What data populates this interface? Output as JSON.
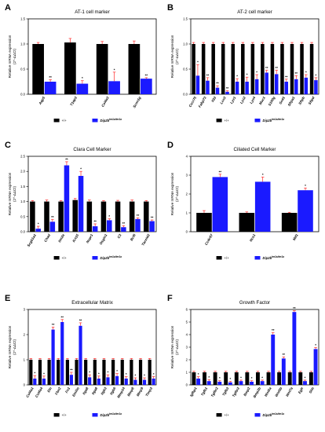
{
  "colors": {
    "control": "#000000",
    "mutant": "#1a1aff",
    "error": "#ff2b2b"
  },
  "legend": {
    "control_label": "+/+",
    "mutant_label": "Dip2b",
    "mutant_sup": "tm1a/tm1a"
  },
  "chart_data": [
    {
      "panel": "A",
      "title": "AT-1 cell marker",
      "type": "bar",
      "ylabel": "Relative mRNA expression",
      "ysub": "(2^-ΔΔCt)",
      "ylim": [
        0,
        1.5
      ],
      "yticks": [
        0.0,
        0.5,
        1.0,
        1.5
      ],
      "tick_labels": [
        "0.0",
        "0.5",
        "1.0",
        "1.5"
      ],
      "categories": [
        "Aqp5",
        "T1αp3",
        "Col4a3",
        "Scnn1g"
      ],
      "series": [
        {
          "name": "+/+",
          "values": [
            1.0,
            1.03,
            1.0,
            1.0
          ],
          "errors": [
            0.03,
            0.08,
            0.05,
            0.06
          ]
        },
        {
          "name": "Dip2b",
          "values": [
            0.25,
            0.21,
            0.26,
            0.31
          ],
          "errors": [
            0.04,
            0.06,
            0.18,
            0.02
          ]
        }
      ],
      "sig": [
        "**",
        "*",
        "*",
        "**"
      ]
    },
    {
      "panel": "B",
      "title": "AT-2 cell marker",
      "type": "bar",
      "ylabel": "Relative mRNA expression",
      "ysub": "(2^-ΔΔCt)",
      "ylim": [
        0,
        1.5
      ],
      "yticks": [
        0.0,
        0.5,
        1.0,
        1.5
      ],
      "tick_labels": [
        "0.0",
        "0.5",
        "1.0",
        "1.5"
      ],
      "categories": [
        "Cxcr75",
        "Fabp73",
        "Il33",
        "Lcn3",
        "Lyz1",
        "Lyz2",
        "Lyz4",
        "Muc1",
        "S100g",
        "Scd1",
        "Sftpa1",
        "Sftpb",
        "Sftpd"
      ],
      "series": [
        {
          "name": "+/+",
          "values": [
            1.0,
            1.0,
            1.0,
            1.0,
            1.0,
            1.0,
            1.0,
            1.0,
            1.0,
            1.0,
            1.0,
            1.0,
            1.0
          ],
          "errors": [
            0.03,
            0.03,
            0.03,
            0.03,
            0.03,
            0.03,
            0.03,
            0.03,
            0.03,
            0.03,
            0.03,
            0.03,
            0.03
          ]
        },
        {
          "name": "Dip2b",
          "values": [
            0.37,
            0.27,
            0.13,
            0.05,
            0.25,
            0.25,
            0.3,
            0.43,
            0.4,
            0.25,
            0.3,
            0.33,
            0.28
          ],
          "errors": [
            0.22,
            0.06,
            0.04,
            0.02,
            0.06,
            0.09,
            0.09,
            0.05,
            0.08,
            0.05,
            0.07,
            0.06,
            0.05
          ]
        }
      ],
      "sig": [
        "*",
        "**",
        "**",
        "**",
        "*",
        "*",
        "*",
        "**",
        "**",
        "**",
        "**",
        "*",
        "*"
      ]
    },
    {
      "panel": "C",
      "title": "Clara Cell Marker",
      "type": "bar",
      "ylabel": "Relative mRNA expression",
      "ysub": "(2^-ΔΔCt)",
      "ylim": [
        0,
        2.5
      ],
      "yticks": [
        0.0,
        0.5,
        1.0,
        1.5,
        2.0,
        2.5
      ],
      "tick_labels": [
        "0.0",
        "0.5",
        "1.0",
        "1.5",
        "2.0",
        "2.5"
      ],
      "categories": [
        "Scgb1a1",
        "Chad",
        "Itm2a",
        "Krt15",
        "Nupr1",
        "Osgin1",
        "C3",
        "Bcl6",
        "Tacstd2"
      ],
      "series": [
        {
          "name": "+/+",
          "values": [
            1.0,
            1.0,
            1.0,
            1.05,
            1.0,
            1.0,
            1.0,
            1.0,
            1.0
          ],
          "errors": [
            0.03,
            0.05,
            0.03,
            0.05,
            0.05,
            0.03,
            0.04,
            0.05,
            0.03
          ]
        },
        {
          "name": "Dip2b",
          "values": [
            0.1,
            0.33,
            2.2,
            1.85,
            0.18,
            0.38,
            0.15,
            0.42,
            0.35
          ],
          "errors": [
            0.08,
            0.08,
            0.12,
            0.15,
            0.08,
            0.05,
            0.05,
            0.04,
            0.04
          ]
        }
      ],
      "sig": [
        "*",
        "**",
        "**",
        "*",
        "**",
        "*",
        "**",
        "**",
        "**"
      ]
    },
    {
      "panel": "D",
      "title": "Ciliated Cell Marker",
      "type": "bar",
      "ylabel": "Relative mRNA expression",
      "ysub": "(2^-ΔΔCt)",
      "ylim": [
        0,
        4
      ],
      "yticks": [
        0,
        1,
        2,
        3,
        4
      ],
      "tick_labels": [
        "0",
        "1",
        "2",
        "3",
        "4"
      ],
      "categories": [
        "Ccdc67",
        "Ncs1",
        "Mif1"
      ],
      "series": [
        {
          "name": "+/+",
          "values": [
            1.0,
            1.0,
            1.0
          ],
          "errors": [
            0.12,
            0.05,
            0.03
          ]
        },
        {
          "name": "Dip2b",
          "values": [
            2.9,
            2.65,
            2.2
          ],
          "errors": [
            0.15,
            0.25,
            0.12
          ]
        }
      ],
      "sig": [
        "**",
        "*",
        "*"
      ]
    },
    {
      "panel": "E",
      "title": "Extracellular Matrix",
      "type": "bar",
      "ylabel": "Relative mRNA expression",
      "ysub": "(2^-ΔΔCt)",
      "ylim": [
        0,
        3
      ],
      "yticks": [
        0,
        1,
        2,
        3
      ],
      "tick_labels": [
        "0",
        "1",
        "2",
        "3"
      ],
      "categories": [
        "Col4a1",
        "Col4a4",
        "Eln",
        "Fbn2",
        "Fn1",
        "Emilin",
        "Itga8",
        "Itga8",
        "Itgb3",
        "Itgb6",
        "Mmp14",
        "Mmp8",
        "Mmp9",
        "Timp3"
      ],
      "series": [
        {
          "name": "+/+",
          "values": [
            1.0,
            1.0,
            1.0,
            1.0,
            1.0,
            1.0,
            1.0,
            1.0,
            1.0,
            1.0,
            1.0,
            1.0,
            1.0,
            1.0
          ],
          "errors": [
            0.05,
            0.05,
            0.05,
            0.05,
            0.05,
            0.05,
            0.05,
            0.05,
            0.05,
            0.05,
            0.05,
            0.05,
            0.05,
            0.05
          ]
        },
        {
          "name": "Dip2b",
          "values": [
            0.25,
            0.25,
            2.2,
            2.5,
            0.4,
            2.35,
            0.3,
            0.25,
            0.3,
            0.35,
            0.25,
            0.2,
            0.2,
            0.25
          ],
          "errors": [
            0.12,
            0.1,
            0.1,
            0.1,
            0.1,
            0.12,
            0.1,
            0.1,
            0.1,
            0.1,
            0.08,
            0.08,
            0.08,
            0.08
          ]
        }
      ],
      "sig": [
        "*",
        "*",
        "**",
        "**",
        "**",
        "**",
        "*",
        "*",
        "*",
        "*",
        "*",
        "*",
        "*",
        "*"
      ]
    },
    {
      "panel": "F",
      "title": "Growth Factor",
      "type": "bar",
      "ylabel": "Relative mRNA expression",
      "ysub": "(2^-ΔΔCt)",
      "ylim": [
        0,
        6
      ],
      "yticks": [
        0,
        1,
        2,
        3,
        4,
        5,
        6
      ],
      "tick_labels": [
        "0",
        "1",
        "2",
        "3",
        "4",
        "5",
        "6"
      ],
      "categories": [
        "Igfbp1",
        "Tgfb1",
        "Tgfbr2",
        "Tgfb3",
        "Tgfbr2",
        "Bmp2",
        "Bmp2b",
        "Wnt5a",
        "Wnt5b",
        "Wnt7a",
        "Egfr",
        "Shh"
      ],
      "series": [
        {
          "name": "+/+",
          "values": [
            1.0,
            1.0,
            1.0,
            1.0,
            1.0,
            1.0,
            1.0,
            1.0,
            1.0,
            1.0,
            1.0,
            1.0
          ],
          "errors": [
            0.08,
            0.08,
            0.08,
            0.08,
            0.08,
            0.08,
            0.08,
            0.08,
            0.08,
            0.08,
            0.08,
            0.08
          ]
        },
        {
          "name": "Dip2b",
          "values": [
            0.5,
            0.3,
            0.25,
            0.2,
            0.3,
            0.25,
            0.3,
            4.0,
            2.1,
            5.8,
            0.3,
            2.85
          ],
          "errors": [
            0.15,
            0.1,
            0.08,
            0.08,
            0.08,
            0.08,
            0.08,
            0.15,
            0.12,
            0.1,
            0.08,
            0.12
          ]
        }
      ],
      "sig": [
        "*",
        "*",
        "*",
        "*",
        "*",
        "*",
        "*",
        "**",
        "**",
        "**",
        "*",
        "*"
      ]
    }
  ]
}
